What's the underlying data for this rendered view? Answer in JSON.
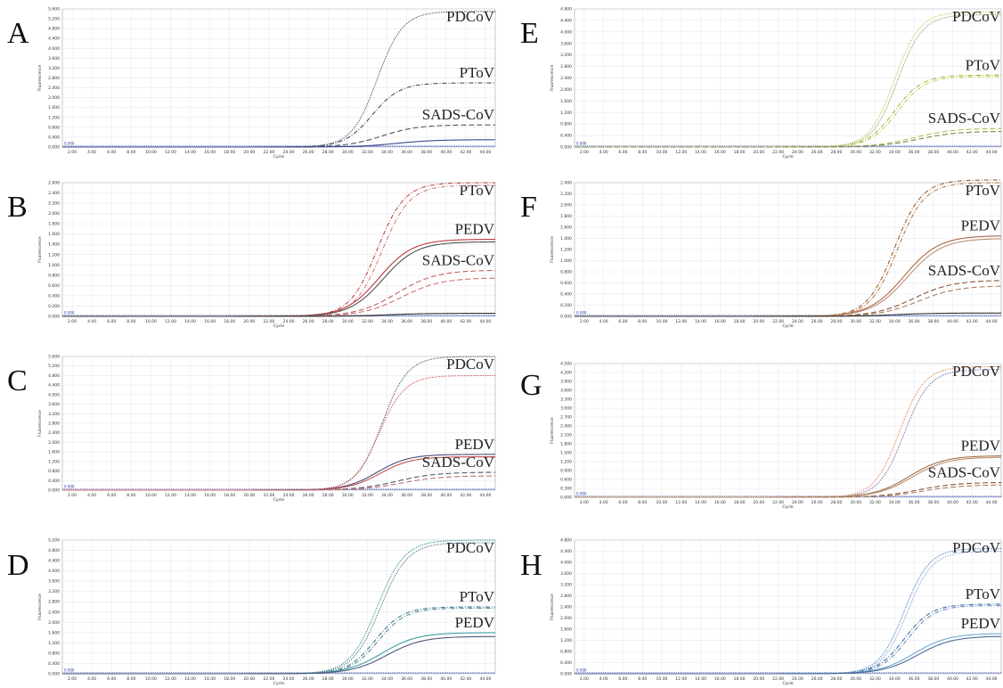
{
  "chart_data": [
    {
      "panel": "A",
      "type": "line",
      "xlabel": "Cycle",
      "ylabel": "Fluorescence",
      "xlim": [
        1,
        45
      ],
      "ylim": [
        0,
        5.6
      ],
      "xticks": [
        "2.00",
        "4.00",
        "6.00",
        "8.00",
        "10.00",
        "12.00",
        "14.00",
        "16.00",
        "18.00",
        "20.00",
        "22.00",
        "24.00",
        "26.00",
        "28.00",
        "30.00",
        "32.00",
        "34.00",
        "36.00",
        "38.00",
        "40.00",
        "42.00",
        "44.00"
      ],
      "yticks": [
        "0.000",
        "0.400",
        "0.800",
        "1.200",
        "1.600",
        "2.000",
        "2.400",
        "2.800",
        "3.200",
        "3.600",
        "4.000",
        "4.400",
        "4.800",
        "5.200",
        "5.600"
      ],
      "baseline_label": "0.000",
      "series": [
        {
          "name": "PDCoV",
          "color": "#3c4c5a",
          "dash": "1.2,1.4",
          "plateau": 5.5,
          "midpoint": 33.0,
          "slope": 1.3
        },
        {
          "name": "PToV",
          "color": "#45505e",
          "dash": "5,2,1,2",
          "plateau": 2.6,
          "midpoint": 32.5,
          "slope": 1.4
        },
        {
          "name": "SADS-CoV",
          "color": "#4a5868",
          "dash": "6,3",
          "plateau": 0.9,
          "midpoint": 33.5,
          "slope": 1.8
        },
        {
          "name": "",
          "color": "#3a4a8a",
          "dash": "",
          "plateau": 0.3,
          "midpoint": 35.0,
          "slope": 2.0
        }
      ]
    },
    {
      "panel": "B",
      "type": "line",
      "xlabel": "Cycle",
      "ylabel": "Fluorescence",
      "xlim": [
        1,
        45
      ],
      "ylim": [
        0,
        2.6
      ],
      "xticks": [
        "2.00",
        "4.00",
        "6.00",
        "8.00",
        "10.00",
        "12.00",
        "14.00",
        "16.00",
        "18.00",
        "20.00",
        "22.00",
        "24.00",
        "26.00",
        "28.00",
        "30.00",
        "32.00",
        "34.00",
        "36.00",
        "38.00",
        "40.00",
        "42.00",
        "44.00"
      ],
      "yticks": [
        "0.000",
        "0.200",
        "0.400",
        "0.600",
        "0.800",
        "1.000",
        "1.200",
        "1.400",
        "1.600",
        "1.800",
        "2.000",
        "2.200",
        "2.400",
        "2.600"
      ],
      "baseline_label": "0.000",
      "series": [
        {
          "name": "PToV",
          "color": "#c04a4a",
          "dash": "5,2,1,2",
          "plateau": 2.6,
          "midpoint": 33.0,
          "slope": 1.4
        },
        {
          "name": "",
          "color": "#d08080",
          "dash": "5,2,1,2",
          "plateau": 2.55,
          "midpoint": 33.5,
          "slope": 1.4
        },
        {
          "name": "PEDV",
          "color": "#b83a3a",
          "dash": "",
          "plateau": 1.5,
          "midpoint": 33.2,
          "slope": 1.7
        },
        {
          "name": "",
          "color": "#505050",
          "dash": "",
          "plateau": 1.45,
          "midpoint": 33.6,
          "slope": 1.7
        },
        {
          "name": "SADS-CoV",
          "color": "#c06060",
          "dash": "6,3",
          "plateau": 0.9,
          "midpoint": 35.0,
          "slope": 2.0
        },
        {
          "name": "",
          "color": "#d07070",
          "dash": "6,3",
          "plateau": 0.75,
          "midpoint": 35.5,
          "slope": 2.0
        },
        {
          "name": "",
          "color": "#333333",
          "dash": "",
          "plateau": 0.06,
          "midpoint": 34.0,
          "slope": 2.0
        }
      ]
    },
    {
      "panel": "C",
      "type": "line",
      "xlabel": "Cycle",
      "ylabel": "Fluorescence",
      "xlim": [
        1,
        45
      ],
      "ylim": [
        0,
        5.6
      ],
      "xticks": [
        "2.00",
        "4.00",
        "6.00",
        "8.00",
        "10.00",
        "12.00",
        "14.00",
        "16.00",
        "18.00",
        "20.00",
        "22.00",
        "24.00",
        "26.00",
        "28.00",
        "30.00",
        "32.00",
        "34.00",
        "36.00",
        "38.00",
        "40.00",
        "42.00",
        "44.00"
      ],
      "yticks": [
        "0.000",
        "0.400",
        "0.800",
        "1.200",
        "1.600",
        "2.000",
        "2.400",
        "2.800",
        "3.200",
        "3.600",
        "4.000",
        "4.400",
        "4.800",
        "5.200",
        "5.600"
      ],
      "baseline_label": "0.000",
      "series": [
        {
          "name": "PDCoV",
          "color": "#3c4c5a",
          "dash": "1.2,1.4",
          "plateau": 5.6,
          "midpoint": 33.5,
          "slope": 1.3
        },
        {
          "name": "",
          "color": "#d04848",
          "dash": "1.2,1.4",
          "plateau": 4.8,
          "midpoint": 33.2,
          "slope": 1.3
        },
        {
          "name": "PEDV",
          "color": "#4a4a7a",
          "dash": "",
          "plateau": 1.5,
          "midpoint": 33.0,
          "slope": 1.6
        },
        {
          "name": "",
          "color": "#c85050",
          "dash": "",
          "plateau": 1.4,
          "midpoint": 33.3,
          "slope": 1.6
        },
        {
          "name": "SADS-CoV",
          "color": "#5a5a6a",
          "dash": "6,3",
          "plateau": 0.75,
          "midpoint": 35.0,
          "slope": 2.0
        },
        {
          "name": "",
          "color": "#c07070",
          "dash": "6,3",
          "plateau": 0.6,
          "midpoint": 35.5,
          "slope": 2.0
        }
      ]
    },
    {
      "panel": "D",
      "type": "line",
      "xlabel": "Cycle",
      "ylabel": "Fluorescence",
      "xlim": [
        1,
        45
      ],
      "ylim": [
        0,
        5.2
      ],
      "xticks": [
        "2.00",
        "4.00",
        "6.00",
        "8.00",
        "10.00",
        "12.00",
        "14.00",
        "16.00",
        "18.00",
        "20.00",
        "22.00",
        "24.00",
        "26.00",
        "28.00",
        "30.00",
        "32.00",
        "34.00",
        "36.00",
        "38.00",
        "40.00",
        "42.00",
        "44.00"
      ],
      "yticks": [
        "0.000",
        "0.400",
        "0.800",
        "1.200",
        "1.600",
        "2.000",
        "2.400",
        "2.800",
        "3.200",
        "3.600",
        "4.000",
        "4.400",
        "4.800",
        "5.200"
      ],
      "baseline_label": "0.000",
      "series": [
        {
          "name": "PDCoV",
          "color": "#2a8a8a",
          "dash": "1.2,1.4",
          "plateau": 5.2,
          "midpoint": 33.0,
          "slope": 1.4
        },
        {
          "name": "",
          "color": "#4a6a7a",
          "dash": "1.2,1.4",
          "plateau": 5.1,
          "midpoint": 33.3,
          "slope": 1.4
        },
        {
          "name": "PToV",
          "color": "#3a7a8a",
          "dash": "5,2,1,2",
          "plateau": 2.6,
          "midpoint": 32.8,
          "slope": 1.4
        },
        {
          "name": "",
          "color": "#5a8a9a",
          "dash": "5,2,1,2",
          "plateau": 2.55,
          "midpoint": 33.1,
          "slope": 1.4
        },
        {
          "name": "PEDV",
          "color": "#3aa0a0",
          "dash": "",
          "plateau": 1.6,
          "midpoint": 33.5,
          "slope": 1.8
        },
        {
          "name": "",
          "color": "#505a7a",
          "dash": "",
          "plateau": 1.45,
          "midpoint": 34.0,
          "slope": 1.8
        }
      ]
    },
    {
      "panel": "E",
      "type": "line",
      "xlabel": "Cycle",
      "ylabel": "Fluorescence",
      "xlim": [
        1,
        45
      ],
      "ylim": [
        0,
        4.8
      ],
      "xticks": [
        "2.00",
        "4.00",
        "6.00",
        "8.00",
        "10.00",
        "12.00",
        "14.00",
        "16.00",
        "18.00",
        "20.00",
        "22.00",
        "24.00",
        "26.00",
        "28.00",
        "30.00",
        "32.00",
        "34.00",
        "36.00",
        "38.00",
        "40.00",
        "42.00",
        "44.00"
      ],
      "yticks": [
        "0.000",
        "0.400",
        "0.800",
        "1.200",
        "1.600",
        "2.000",
        "2.400",
        "2.800",
        "3.200",
        "3.600",
        "4.000",
        "4.400",
        "4.800"
      ],
      "baseline_label": "0.000",
      "series": [
        {
          "name": "PDCoV",
          "color": "#b8c84a",
          "dash": "1.2,1.4",
          "plateau": 4.7,
          "midpoint": 34.0,
          "slope": 1.3
        },
        {
          "name": "",
          "color": "#8a9a5a",
          "dash": "1.2,1.4",
          "plateau": 4.6,
          "midpoint": 34.3,
          "slope": 1.3
        },
        {
          "name": "PToV",
          "color": "#a8b840",
          "dash": "5,2,1,2",
          "plateau": 2.5,
          "midpoint": 34.0,
          "slope": 1.4
        },
        {
          "name": "",
          "color": "#c8d060",
          "dash": "5,2,1,2",
          "plateau": 2.45,
          "midpoint": 34.3,
          "slope": 1.4
        },
        {
          "name": "SADS-CoV",
          "color": "#b0c050",
          "dash": "6,3",
          "plateau": 0.65,
          "midpoint": 36.0,
          "slope": 2.0
        },
        {
          "name": "",
          "color": "#7a8a4a",
          "dash": "6,3",
          "plateau": 0.55,
          "midpoint": 36.5,
          "slope": 2.0
        }
      ]
    },
    {
      "panel": "F",
      "type": "line",
      "xlabel": "Cycle",
      "ylabel": "Fluorescence",
      "xlim": [
        1,
        45
      ],
      "ylim": [
        0,
        2.4
      ],
      "xticks": [
        "2.00",
        "4.00",
        "6.00",
        "8.00",
        "10.00",
        "12.00",
        "14.00",
        "16.00",
        "18.00",
        "20.00",
        "22.00",
        "24.00",
        "26.00",
        "28.00",
        "30.00",
        "32.00",
        "34.00",
        "36.00",
        "38.00",
        "40.00",
        "42.00",
        "44.00"
      ],
      "yticks": [
        "0.000",
        "0.200",
        "0.400",
        "0.600",
        "0.800",
        "1.000",
        "1.200",
        "1.400",
        "1.600",
        "1.800",
        "2.000",
        "2.200",
        "2.400"
      ],
      "baseline_label": "0.000",
      "series": [
        {
          "name": "PToV",
          "color": "#a0602a",
          "dash": "5,2,1,2",
          "plateau": 2.45,
          "midpoint": 34.0,
          "slope": 1.4
        },
        {
          "name": "",
          "color": "#b8804a",
          "dash": "5,2,1,2",
          "plateau": 2.4,
          "midpoint": 34.3,
          "slope": 1.4
        },
        {
          "name": "PEDV",
          "color": "#a86a4a",
          "dash": "",
          "plateau": 1.45,
          "midpoint": 35.0,
          "slope": 1.8
        },
        {
          "name": "",
          "color": "#c09070",
          "dash": "",
          "plateau": 1.4,
          "midpoint": 35.3,
          "slope": 1.8
        },
        {
          "name": "SADS-CoV",
          "color": "#8a5a3a",
          "dash": "6,3",
          "plateau": 0.65,
          "midpoint": 36.0,
          "slope": 2.0
        },
        {
          "name": "",
          "color": "#b08060",
          "dash": "6,3",
          "plateau": 0.55,
          "midpoint": 36.5,
          "slope": 2.0
        },
        {
          "name": "",
          "color": "#333333",
          "dash": "",
          "plateau": 0.06,
          "midpoint": 34.0,
          "slope": 2.0
        }
      ]
    },
    {
      "panel": "G",
      "type": "line",
      "xlabel": "Cycle",
      "ylabel": "Fluorescence",
      "xlim": [
        1,
        45
      ],
      "ylim": [
        0,
        4.5
      ],
      "xticks": [
        "2.00",
        "4.00",
        "6.00",
        "8.00",
        "10.00",
        "12.00",
        "14.00",
        "16.00",
        "18.00",
        "20.00",
        "22.00",
        "24.00",
        "26.00",
        "28.00",
        "30.00",
        "32.00",
        "34.00",
        "36.00",
        "38.00",
        "40.00",
        "42.00",
        "44.00"
      ],
      "yticks": [
        "0.000",
        "0.300",
        "0.600",
        "0.900",
        "1.200",
        "1.500",
        "1.800",
        "2.100",
        "2.400",
        "2.700",
        "3.000",
        "3.300",
        "3.600",
        "3.900",
        "4.200",
        "4.500"
      ],
      "baseline_label": "0.000",
      "series": [
        {
          "name": "PDCoV",
          "color": "#e08040",
          "dash": "1.2,1.4",
          "plateau": 4.4,
          "midpoint": 34.5,
          "slope": 1.3
        },
        {
          "name": "",
          "color": "#6a6aa0",
          "dash": "1.2,1.4",
          "plateau": 4.3,
          "midpoint": 35.0,
          "slope": 1.3
        },
        {
          "name": "PEDV",
          "color": "#a0704a",
          "dash": "",
          "plateau": 1.4,
          "midpoint": 35.5,
          "slope": 1.8
        },
        {
          "name": "",
          "color": "#c09070",
          "dash": "",
          "plateau": 1.35,
          "midpoint": 35.8,
          "slope": 1.8
        },
        {
          "name": "SADS-CoV",
          "color": "#8a5a3a",
          "dash": "6,3",
          "plateau": 0.5,
          "midpoint": 36.5,
          "slope": 2.0
        },
        {
          "name": "",
          "color": "#b08060",
          "dash": "6,3",
          "plateau": 0.42,
          "midpoint": 37.0,
          "slope": 2.0
        }
      ]
    },
    {
      "panel": "H",
      "type": "line",
      "xlabel": "Cycle",
      "ylabel": "Fluorescence",
      "xlim": [
        1,
        45
      ],
      "ylim": [
        0,
        4.8
      ],
      "xticks": [
        "2.00",
        "4.00",
        "6.00",
        "8.00",
        "10.00",
        "12.00",
        "14.00",
        "16.00",
        "18.00",
        "20.00",
        "22.00",
        "24.00",
        "26.00",
        "28.00",
        "30.00",
        "32.00",
        "34.00",
        "36.00",
        "38.00",
        "40.00",
        "42.00",
        "44.00"
      ],
      "yticks": [
        "0.000",
        "0.400",
        "0.800",
        "1.200",
        "1.600",
        "2.000",
        "2.400",
        "2.800",
        "3.200",
        "3.600",
        "4.000",
        "4.400",
        "4.800"
      ],
      "baseline_label": "0.000",
      "series": [
        {
          "name": "PDCoV",
          "color": "#4a7ab8",
          "dash": "1.2,1.4",
          "plateau": 4.5,
          "midpoint": 35.0,
          "slope": 1.3
        },
        {
          "name": "",
          "color": "#7aa0d0",
          "dash": "1.2,1.4",
          "plateau": 4.4,
          "midpoint": 35.3,
          "slope": 1.3
        },
        {
          "name": "PToV",
          "color": "#3a6aa0",
          "dash": "5,2,1,2",
          "plateau": 2.5,
          "midpoint": 35.0,
          "slope": 1.4
        },
        {
          "name": "",
          "color": "#6a90c0",
          "dash": "5,2,1,2",
          "plateau": 2.45,
          "midpoint": 35.3,
          "slope": 1.4
        },
        {
          "name": "PEDV",
          "color": "#70a8d0",
          "dash": "",
          "plateau": 1.45,
          "midpoint": 36.0,
          "slope": 1.8
        },
        {
          "name": "",
          "color": "#4a6a9a",
          "dash": "",
          "plateau": 1.35,
          "midpoint": 36.4,
          "slope": 1.8
        }
      ]
    }
  ]
}
